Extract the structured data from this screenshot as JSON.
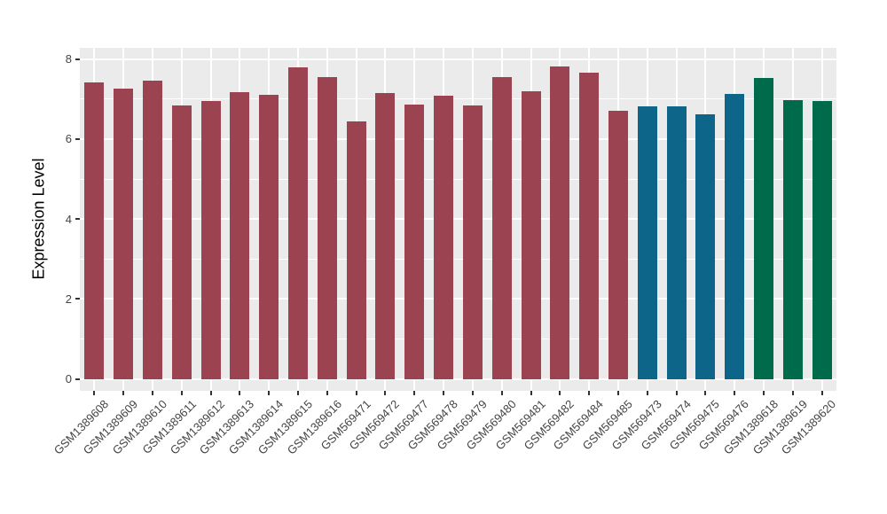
{
  "chart_data": {
    "type": "bar",
    "title": "",
    "xlabel": "",
    "ylabel": "Expression Level",
    "ylim": [
      0,
      8.6
    ],
    "yticks": [
      0,
      2,
      4,
      6,
      8
    ],
    "yminor": [
      1,
      3,
      5,
      7
    ],
    "legend_position": "none",
    "grid": "white major+minor horizontal lines, white major vertical line per category, on light-gray panel",
    "categories": [
      "GSM1389608",
      "GSM1389609",
      "GSM1389610",
      "GSM1389611",
      "GSM1389612",
      "GSM1389613",
      "GSM1389614",
      "GSM1389615",
      "GSM1389616",
      "GSM569471",
      "GSM569472",
      "GSM569477",
      "GSM569478",
      "GSM569479",
      "GSM569480",
      "GSM569481",
      "GSM569482",
      "GSM569484",
      "GSM569485",
      "GSM569473",
      "GSM569474",
      "GSM569475",
      "GSM569476",
      "GSM1389618",
      "GSM1389619",
      "GSM1389620"
    ],
    "values": [
      7.42,
      7.26,
      7.46,
      6.85,
      6.95,
      7.18,
      7.1,
      7.8,
      7.55,
      6.45,
      7.16,
      6.87,
      7.08,
      6.85,
      7.55,
      7.2,
      7.82,
      7.66,
      6.7,
      6.82,
      6.82,
      6.62,
      7.13,
      7.53,
      6.98,
      6.95
    ],
    "groups": [
      0,
      0,
      0,
      0,
      0,
      0,
      0,
      0,
      0,
      0,
      0,
      0,
      0,
      0,
      0,
      0,
      0,
      0,
      0,
      1,
      1,
      1,
      1,
      2,
      2,
      2
    ],
    "palette": [
      "#9C4352",
      "#0D6689",
      "#006B4A"
    ],
    "colors": {
      "panel_background": "#EBEBEB",
      "gridline": "#FFFFFF",
      "axis_text": "#444444",
      "axis_title": "#000000",
      "tick_mark": "#333333",
      "figure_background": "#FFFFFF"
    }
  }
}
